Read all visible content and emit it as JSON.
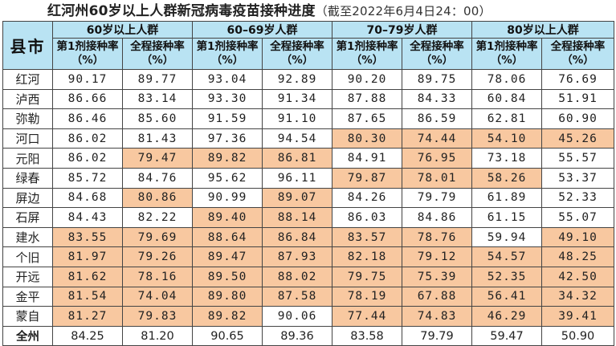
{
  "title": "红河州60岁以上人群新冠病毒疫苗接种进度",
  "subtitle": "（截至2022年6月4日24：00）",
  "county_header": "县市",
  "groups": [
    "60岁以上人群",
    "60–69岁人群",
    "70–79岁人群",
    "80岁以上人群"
  ],
  "sub_headers": [
    "第1剂接种率（%）",
    "全程接种率（%）"
  ],
  "highlight_color": "#f8c8a0",
  "header_color": "#b9e3f3",
  "rows": [
    {
      "name": "红河",
      "values": [
        "90.17",
        "89.77",
        "93.04",
        "92.89",
        "90.20",
        "89.75",
        "78.06",
        "76.69"
      ],
      "hl": [
        0,
        0,
        0,
        0,
        0,
        0,
        0,
        0
      ]
    },
    {
      "name": "泸西",
      "values": [
        "86.66",
        "83.14",
        "93.30",
        "91.34",
        "87.88",
        "84.33",
        "60.84",
        "51.91"
      ],
      "hl": [
        0,
        0,
        0,
        0,
        0,
        0,
        0,
        0
      ]
    },
    {
      "name": "弥勒",
      "values": [
        "86.46",
        "85.60",
        "91.59",
        "91.10",
        "87.65",
        "86.59",
        "62.81",
        "60.90"
      ],
      "hl": [
        0,
        0,
        0,
        0,
        0,
        0,
        0,
        0
      ]
    },
    {
      "name": "河口",
      "values": [
        "86.02",
        "81.43",
        "97.36",
        "94.54",
        "80.30",
        "74.44",
        "54.10",
        "45.26"
      ],
      "hl": [
        0,
        0,
        0,
        0,
        1,
        1,
        1,
        1
      ]
    },
    {
      "name": "元阳",
      "values": [
        "86.02",
        "79.47",
        "89.82",
        "86.81",
        "84.91",
        "76.95",
        "73.18",
        "55.57"
      ],
      "hl": [
        0,
        1,
        1,
        1,
        0,
        1,
        0,
        0
      ]
    },
    {
      "name": "绿春",
      "values": [
        "85.72",
        "84.76",
        "95.62",
        "96.11",
        "79.87",
        "78.01",
        "58.26",
        "53.37"
      ],
      "hl": [
        0,
        0,
        0,
        0,
        1,
        1,
        1,
        0
      ]
    },
    {
      "name": "屏边",
      "values": [
        "84.68",
        "80.86",
        "90.99",
        "89.07",
        "84.26",
        "79.79",
        "61.89",
        "52.33"
      ],
      "hl": [
        0,
        1,
        0,
        1,
        0,
        0,
        0,
        0
      ]
    },
    {
      "name": "石屏",
      "values": [
        "84.43",
        "82.22",
        "89.40",
        "88.14",
        "86.03",
        "84.86",
        "61.15",
        "55.07"
      ],
      "hl": [
        0,
        0,
        1,
        1,
        0,
        0,
        0,
        0
      ]
    },
    {
      "name": "建水",
      "values": [
        "83.55",
        "79.69",
        "88.64",
        "86.84",
        "83.57",
        "78.76",
        "59.94",
        "49.10"
      ],
      "hl": [
        1,
        1,
        1,
        1,
        1,
        1,
        0,
        1
      ]
    },
    {
      "name": "个旧",
      "values": [
        "81.97",
        "79.26",
        "89.47",
        "87.93",
        "82.18",
        "79.12",
        "54.57",
        "48.25"
      ],
      "hl": [
        1,
        1,
        1,
        1,
        1,
        1,
        1,
        1
      ]
    },
    {
      "name": "开远",
      "values": [
        "81.62",
        "78.16",
        "89.50",
        "88.02",
        "79.75",
        "75.39",
        "52.35",
        "42.50"
      ],
      "hl": [
        1,
        1,
        1,
        1,
        1,
        1,
        1,
        1
      ]
    },
    {
      "name": "金平",
      "values": [
        "81.54",
        "74.04",
        "89.80",
        "87.58",
        "78.19",
        "67.88",
        "56.41",
        "34.32"
      ],
      "hl": [
        1,
        1,
        1,
        1,
        1,
        1,
        1,
        1
      ]
    },
    {
      "name": "蒙自",
      "values": [
        "81.27",
        "79.83",
        "89.82",
        "90.06",
        "77.44",
        "74.83",
        "46.29",
        "39.41"
      ],
      "hl": [
        1,
        1,
        1,
        0,
        1,
        1,
        1,
        1
      ]
    }
  ],
  "total": {
    "name": "全州",
    "values": [
      "84.25",
      "81.20",
      "90.65",
      "89.36",
      "83.58",
      "79.79",
      "59.47",
      "50.90"
    ]
  }
}
